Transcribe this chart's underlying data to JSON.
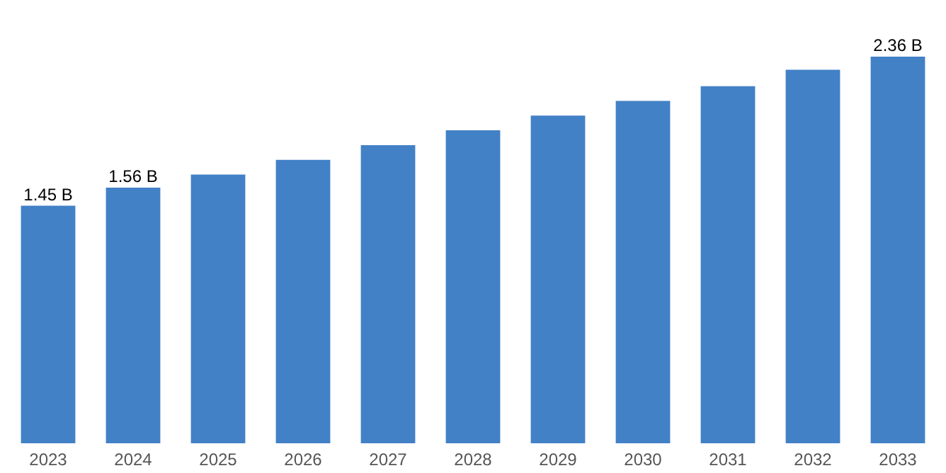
{
  "chart_data": {
    "type": "bar",
    "categories": [
      "2023",
      "2024",
      "2025",
      "2026",
      "2027",
      "2028",
      "2029",
      "2030",
      "2031",
      "2032",
      "2033"
    ],
    "values": [
      1.45,
      1.56,
      1.64,
      1.73,
      1.82,
      1.91,
      2.0,
      2.09,
      2.18,
      2.28,
      2.36
    ],
    "value_labels": [
      "1.45 B",
      "1.56 B",
      null,
      null,
      null,
      null,
      null,
      null,
      null,
      null,
      "2.36 B"
    ],
    "color": "#4281c6",
    "grid": false
  }
}
